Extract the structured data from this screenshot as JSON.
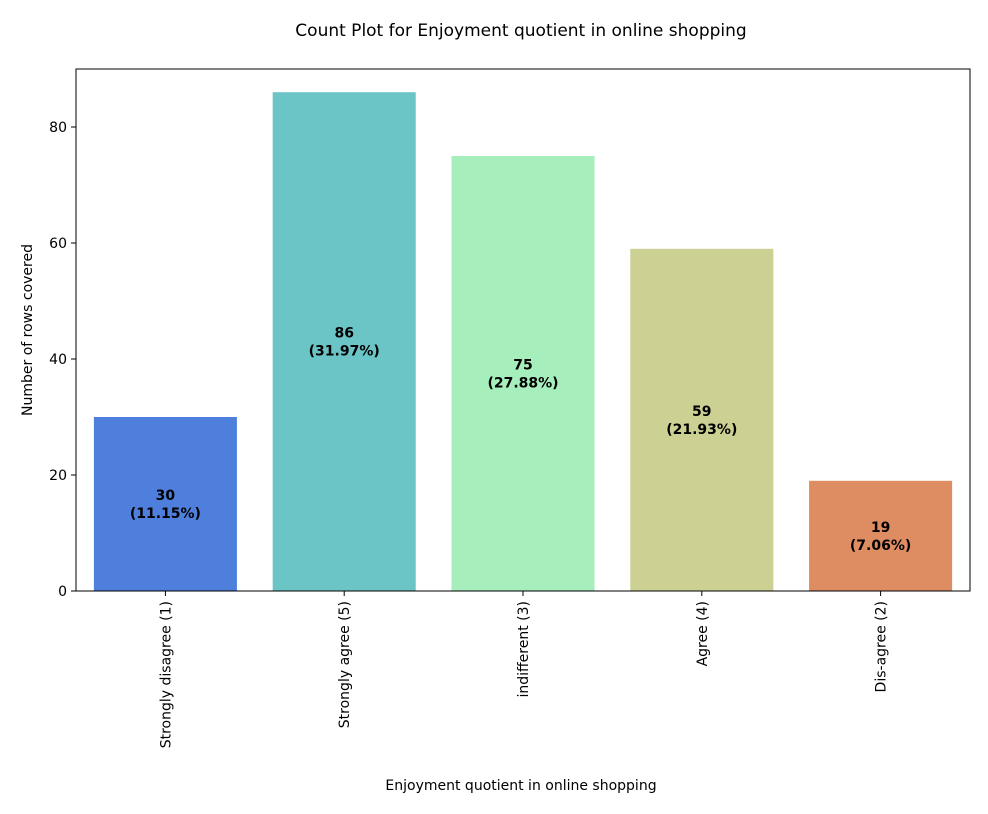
{
  "chart_data": {
    "type": "bar",
    "title": "Count Plot for Enjoyment quotient in online shopping",
    "xlabel": "Enjoyment quotient in online shopping",
    "ylabel": "Number of rows covered",
    "categories": [
      "Strongly disagree (1)",
      "Strongly agree (5)",
      "indifferent (3)",
      "Agree (4)",
      "Dis-agree (2)"
    ],
    "values": [
      30,
      86,
      75,
      59,
      19
    ],
    "value_labels": [
      "30",
      "86",
      "75",
      "59",
      "19"
    ],
    "percent_labels": [
      "(11.15%)",
      "(31.97%)",
      "(27.88%)",
      "(21.93%)",
      "(7.06%)"
    ],
    "colors": [
      "#4f7fdd",
      "#6bc4c5",
      "#a6eebc",
      "#ccd193",
      "#de8c62"
    ],
    "yticks": [
      0,
      20,
      40,
      60,
      80
    ],
    "ylim": [
      0,
      90
    ],
    "grid": false,
    "legend": "none"
  }
}
